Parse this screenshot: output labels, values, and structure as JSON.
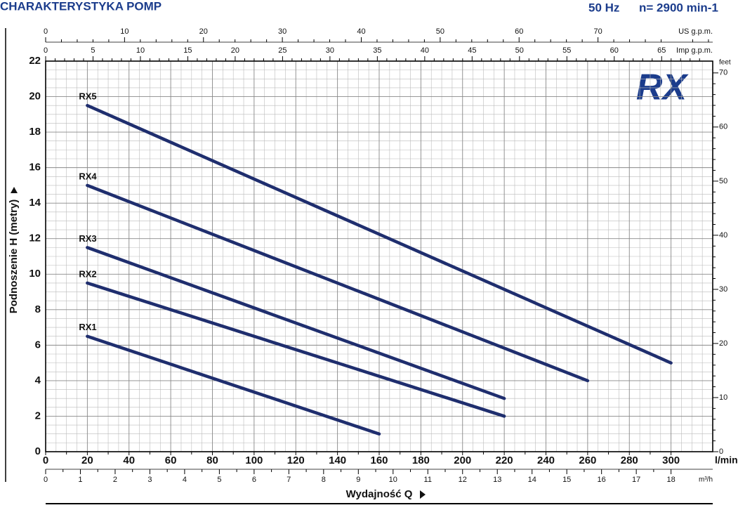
{
  "chart_data": {
    "type": "line",
    "title": "CHARAKTERYSTYKA POMP",
    "frequency": "50 Hz",
    "speed": "n= 2900 min-1",
    "logo": "RX",
    "xlabel": "Wydajność Q",
    "ylabel": "Podnoszenie H (metry)",
    "x_unit": "l/min",
    "y2_unit": "feet",
    "xlim": [
      0,
      320
    ],
    "xticks": [
      0,
      20,
      40,
      60,
      80,
      100,
      120,
      140,
      160,
      180,
      200,
      220,
      240,
      260,
      280,
      300
    ],
    "ylim": [
      0,
      22
    ],
    "yticks": [
      0,
      2,
      4,
      6,
      8,
      10,
      12,
      14,
      16,
      18,
      20,
      22
    ],
    "y2lim": [
      0,
      72.18
    ],
    "y2ticks": [
      0,
      10,
      20,
      30,
      40,
      50,
      60,
      70
    ],
    "grid": true,
    "top_axes": [
      {
        "label": "US g.p.m.",
        "lim": [
          0,
          84.54
        ],
        "ticks": [
          0,
          10,
          20,
          30,
          40,
          50,
          60,
          70
        ]
      },
      {
        "label": "Imp g.p.m.",
        "lim": [
          0,
          70.39
        ],
        "ticks": [
          0,
          5,
          10,
          15,
          20,
          25,
          30,
          35,
          40,
          45,
          50,
          55,
          60,
          65
        ]
      }
    ],
    "bottom_axis": {
      "label": "m³/h",
      "lim": [
        0,
        19.2
      ],
      "ticks": [
        0,
        1,
        2,
        3,
        4,
        5,
        6,
        7,
        8,
        9,
        10,
        11,
        12,
        13,
        14,
        15,
        16,
        17,
        18
      ]
    },
    "series": [
      {
        "name": "RX1",
        "color": "#1f2e6e",
        "x": [
          20,
          160
        ],
        "values": [
          6.5,
          1
        ]
      },
      {
        "name": "RX2",
        "color": "#1f2e6e",
        "x": [
          20,
          220
        ],
        "values": [
          9.5,
          2
        ]
      },
      {
        "name": "RX3",
        "color": "#1f2e6e",
        "x": [
          20,
          220
        ],
        "values": [
          11.5,
          3
        ]
      },
      {
        "name": "RX4",
        "color": "#1f2e6e",
        "x": [
          20,
          260
        ],
        "values": [
          15,
          4
        ]
      },
      {
        "name": "RX5",
        "color": "#1f2e6e",
        "x": [
          20,
          300
        ],
        "values": [
          19.5,
          5
        ]
      }
    ]
  }
}
